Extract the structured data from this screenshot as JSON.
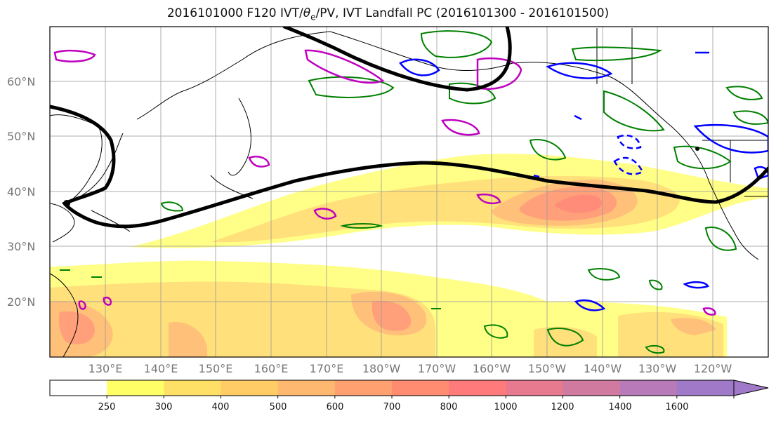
{
  "title": {
    "prefix": "2016101000 F120 IVT/",
    "theta": "θ",
    "theta_sub": "e",
    "suffix": "/PV, IVT Landfall PC (2016101300 - 2016101500)"
  },
  "map": {
    "lat_labels": [
      "60°N",
      "50°N",
      "40°N",
      "30°N",
      "20°N"
    ],
    "lon_labels": [
      "130°E",
      "140°E",
      "150°E",
      "160°E",
      "170°E",
      "180°W",
      "170°W",
      "160°W",
      "150°W",
      "140°W",
      "130°W",
      "120°W"
    ],
    "contour_colors": {
      "pc_contour": "#000000",
      "theta_e": "#008000",
      "pv_positive": "#0000ff",
      "pv_negative": "#bf00bf"
    }
  },
  "colorbar": {
    "ticks": [
      "250",
      "300",
      "400",
      "500",
      "600",
      "700",
      "800",
      "1000",
      "1200",
      "1400",
      "1600"
    ],
    "colors": [
      "#ffffff",
      "#ffff66",
      "#ffe066",
      "#ffcc66",
      "#ffb870",
      "#ffa070",
      "#ff8c70",
      "#ff7a7a",
      "#e87a90",
      "#d07aa0",
      "#b87ab8",
      "#a07ac8"
    ],
    "extend": "max"
  }
}
